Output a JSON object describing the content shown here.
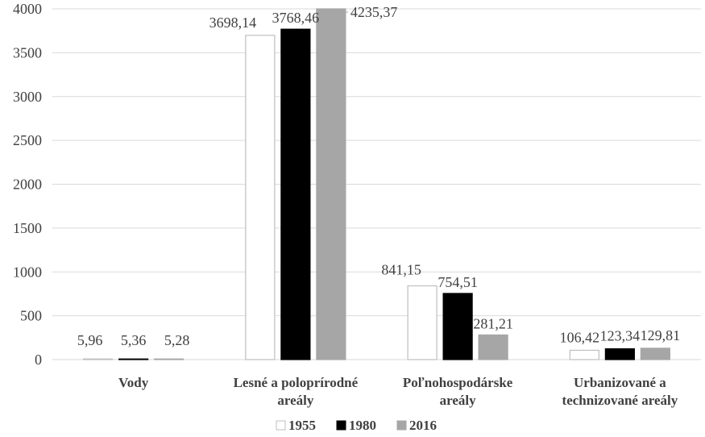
{
  "chart_data": {
    "type": "bar",
    "title": "",
    "xlabel": "",
    "ylabel": "",
    "ylim": [
      0,
      4000
    ],
    "yticks": [
      0,
      500,
      1000,
      1500,
      2000,
      2500,
      3000,
      3500,
      4000
    ],
    "grid": true,
    "legend_position": "bottom",
    "categories": [
      [
        "Vody"
      ],
      [
        "Lesné a poloprírodné",
        "areály"
      ],
      [
        "Poľnohospodárske",
        "areály"
      ],
      [
        "Urbanizované a",
        "technizované areály"
      ]
    ],
    "series": [
      {
        "name": "1955",
        "color": "#ffffff",
        "stroke": "#bfbfbf",
        "values": [
          5.96,
          3698.14,
          841.15,
          106.42
        ],
        "labels": [
          "5,96",
          "3698,14",
          "841,15",
          "106,42"
        ]
      },
      {
        "name": "1980",
        "color": "#000000",
        "stroke": "#000000",
        "values": [
          5.36,
          3768.46,
          754.51,
          123.34
        ],
        "labels": [
          "5,36",
          "3768,46",
          "754,51",
          "123,34"
        ]
      },
      {
        "name": "2016",
        "color": "#a6a6a6",
        "stroke": "#a6a6a6",
        "values": [
          5.28,
          4235.37,
          281.21,
          129.81
        ],
        "labels": [
          "5,28",
          "4235,37",
          "281,21",
          "129,81"
        ]
      }
    ]
  }
}
